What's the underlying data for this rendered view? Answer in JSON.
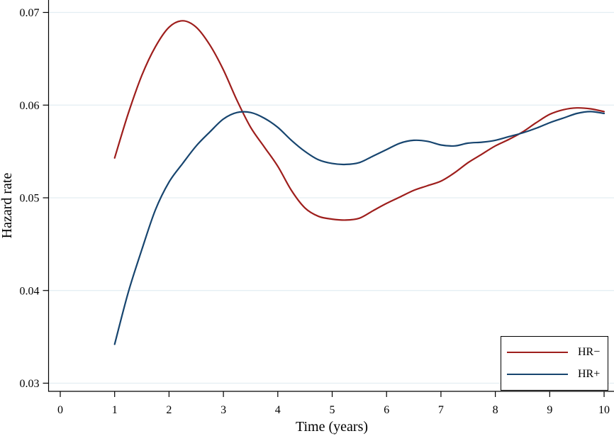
{
  "figure": {
    "background_color": "#ffffff",
    "axis_color": "#000000",
    "gridline_color": "#e3edf2",
    "tick_label_color": "#000000"
  },
  "legend": {
    "items": [
      {
        "label": "HR−",
        "color": "#9e1e1c",
        "swatch": "line"
      },
      {
        "label": "HR+",
        "color": "#17456f",
        "swatch": "line"
      }
    ],
    "position": "bottom-right",
    "border_color": "#000000",
    "background": "#ffffff"
  },
  "chart_data": {
    "type": "line",
    "title": "",
    "xlabel": "Time (years)",
    "ylabel": "Hazard rate",
    "grid": "horizontal",
    "legend_position": "bottom-right",
    "xlim": [
      -0.215,
      10.182
    ],
    "ylim": [
      0.02912,
      0.07134
    ],
    "x_ticks": [
      0,
      1,
      2,
      3,
      4,
      5,
      6,
      7,
      8,
      9,
      10
    ],
    "x_tick_labels": [
      "0",
      "1",
      "2",
      "3",
      "4",
      "5",
      "6",
      "7",
      "8",
      "9",
      "10"
    ],
    "y_ticks": [
      0.03,
      0.04,
      0.05,
      0.06,
      0.07
    ],
    "y_tick_labels": [
      "0.03",
      "0.04",
      "0.05",
      "0.06",
      "0.07"
    ],
    "x": [
      1.0,
      1.25,
      1.5,
      1.75,
      2.0,
      2.25,
      2.5,
      2.75,
      3.0,
      3.25,
      3.5,
      3.75,
      4.0,
      4.25,
      4.5,
      4.75,
      5.0,
      5.25,
      5.5,
      5.75,
      6.0,
      6.25,
      6.5,
      6.75,
      7.0,
      7.25,
      7.5,
      7.75,
      8.0,
      8.25,
      8.5,
      8.75,
      9.0,
      9.25,
      9.5,
      9.75,
      10.0
    ],
    "series": [
      {
        "name": "HR−",
        "color": "#9e1e1c",
        "values": [
          0.0543,
          0.0591,
          0.0632,
          0.0663,
          0.0684,
          0.0691,
          0.0684,
          0.0665,
          0.0638,
          0.0605,
          0.0576,
          0.0555,
          0.0534,
          0.0508,
          0.0489,
          0.048,
          0.0477,
          0.0476,
          0.0478,
          0.0486,
          0.0494,
          0.0501,
          0.0508,
          0.0513,
          0.0518,
          0.0527,
          0.0538,
          0.0547,
          0.0556,
          0.0563,
          0.0571,
          0.0581,
          0.059,
          0.0595,
          0.0597,
          0.0596,
          0.0593
        ]
      },
      {
        "name": "HR+",
        "color": "#17456f",
        "values": [
          0.0342,
          0.0398,
          0.0444,
          0.0487,
          0.0517,
          0.0537,
          0.0556,
          0.0571,
          0.0585,
          0.0592,
          0.0592,
          0.0586,
          0.0576,
          0.0562,
          0.055,
          0.0541,
          0.0537,
          0.0536,
          0.0538,
          0.0545,
          0.0552,
          0.0559,
          0.0562,
          0.0561,
          0.0557,
          0.0556,
          0.0559,
          0.056,
          0.0562,
          0.0566,
          0.057,
          0.0575,
          0.0581,
          0.0586,
          0.0591,
          0.0593,
          0.0591
        ]
      }
    ]
  }
}
